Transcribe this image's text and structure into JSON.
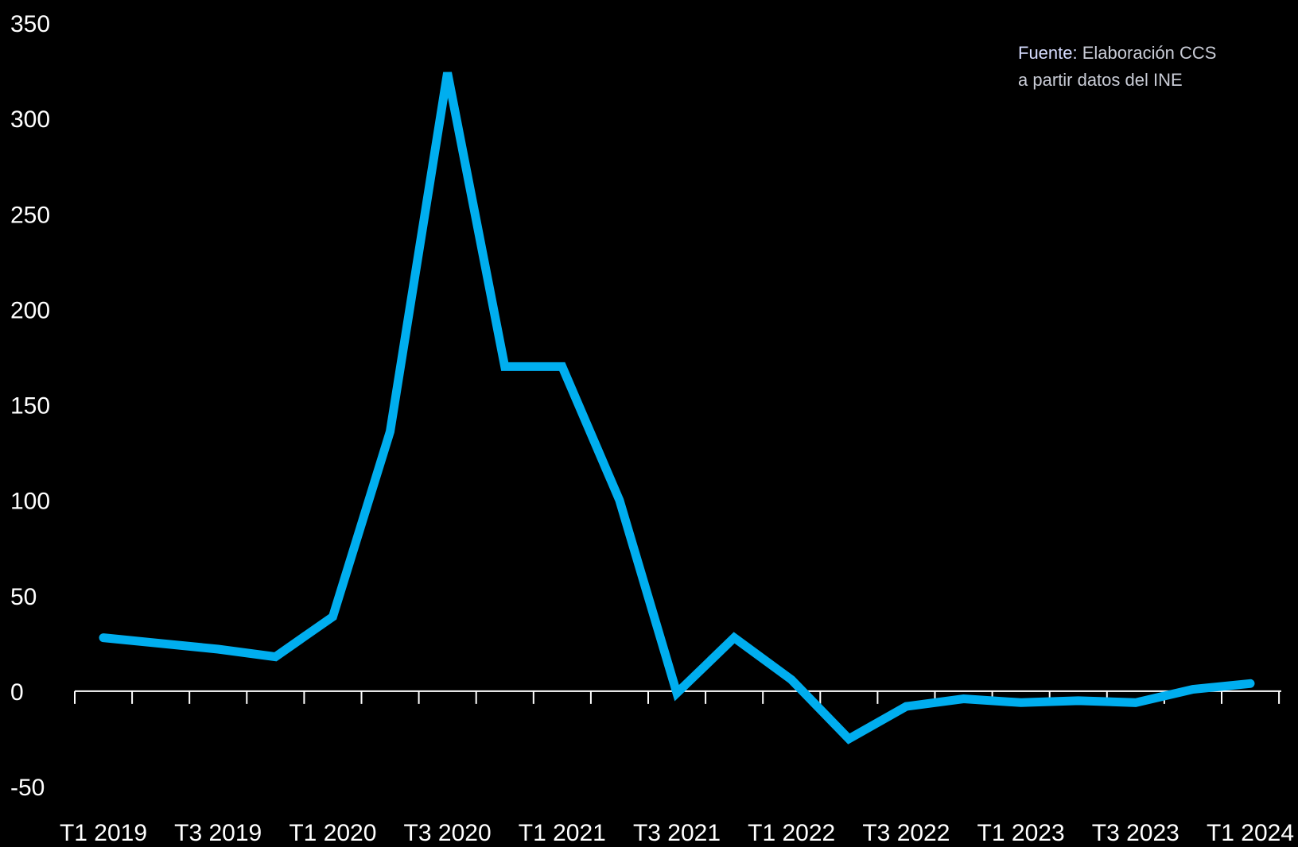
{
  "source": {
    "prefix": "Fuente:",
    "line1": "Elaboración CCS",
    "line2": "a partir datos del INE"
  },
  "chart_data": {
    "type": "line",
    "title": "",
    "xlabel": "",
    "ylabel": "",
    "x": [
      "T1 2019",
      "T2 2019",
      "T3 2019",
      "T4 2019",
      "T1 2020",
      "T2 2020",
      "T3 2020",
      "T4 2020",
      "T1 2021",
      "T2 2021",
      "T3 2021",
      "T4 2021",
      "T1 2022",
      "T2 2022",
      "T3 2022",
      "T4 2022",
      "T1 2023",
      "T2 2023",
      "T3 2023",
      "T4 2023",
      "T1 2024"
    ],
    "x_tick_labels": [
      "T1 2019",
      "T3 2019",
      "T1 2020",
      "T3 2020",
      "T1 2021",
      "T3 2021",
      "T1 2022",
      "T3 2022",
      "T1 2023",
      "T3 2023",
      "T1 2024"
    ],
    "y_ticks": [
      350,
      300,
      250,
      200,
      150,
      100,
      50,
      0,
      -50
    ],
    "ylim": [
      -50,
      350
    ],
    "grid": false,
    "series": [
      {
        "values": [
          28,
          25,
          22,
          18,
          39,
          136,
          324,
          170,
          170,
          100,
          -1,
          28,
          6,
          -25,
          -8,
          -4,
          -6,
          -5,
          -6,
          1,
          4
        ],
        "color": "#00aeef"
      }
    ]
  }
}
